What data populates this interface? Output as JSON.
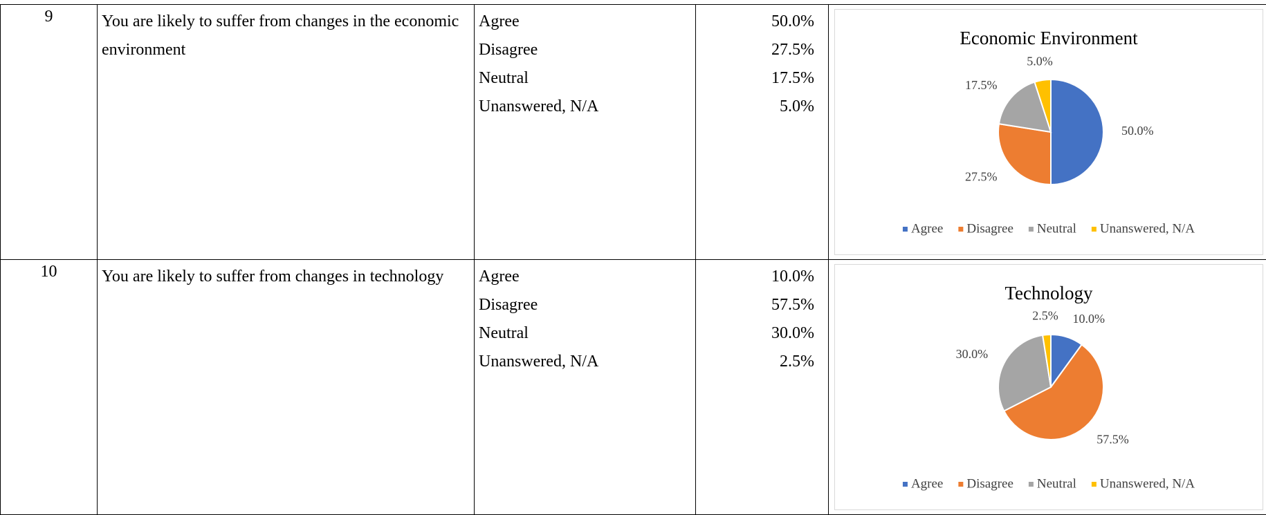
{
  "table": {
    "rows": [
      {
        "number": "9",
        "statement": "You are likely to suffer from changes in the economic environment",
        "options": [
          "Agree",
          "Disagree",
          "Neutral",
          "Unanswered, N/A"
        ],
        "percents": [
          "50.0%",
          "27.5%",
          "17.5%",
          "5.0%"
        ]
      },
      {
        "number": "10",
        "statement": "You are likely to suffer from changes in technology",
        "options": [
          "Agree",
          "Disagree",
          "Neutral",
          "Unanswered, N/A"
        ],
        "percents": [
          "10.0%",
          "57.5%",
          "30.0%",
          "2.5%"
        ]
      }
    ]
  },
  "chart_data": [
    {
      "type": "pie",
      "title": "Economic Environment",
      "categories": [
        "Agree",
        "Disagree",
        "Neutral",
        "Unanswered, N/A"
      ],
      "values": [
        50,
        27.5,
        17.5,
        5
      ],
      "value_labels": [
        "50.0%",
        "27.5%",
        "17.5%",
        "5.0%"
      ],
      "colors": [
        "#4472c4",
        "#ed7d31",
        "#a5a5a5",
        "#ffc000"
      ],
      "legend": "bottom"
    },
    {
      "type": "pie",
      "title": "Technology",
      "categories": [
        "Agree",
        "Disagree",
        "Neutral",
        "Unanswered, N/A"
      ],
      "values": [
        10,
        57.5,
        30,
        2.5
      ],
      "value_labels": [
        "10.0%",
        "57.5%",
        "30.0%",
        "2.5%"
      ],
      "colors": [
        "#4472c4",
        "#ed7d31",
        "#a5a5a5",
        "#ffc000"
      ],
      "legend": "bottom"
    }
  ]
}
